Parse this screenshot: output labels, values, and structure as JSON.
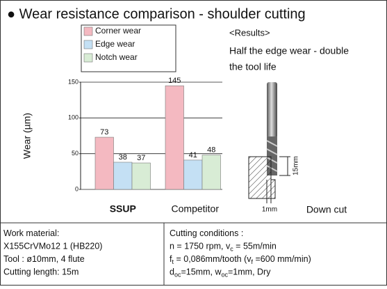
{
  "chart_data": {
    "type": "bar",
    "title": "● Wear resistance comparison - shoulder cutting",
    "y_label": "Wear (µm)",
    "categories": [
      "SSUP",
      "Competitor"
    ],
    "series": [
      {
        "name": "Corner wear",
        "color": "#f4b9c1",
        "values": [
          73,
          145
        ]
      },
      {
        "name": "Edge wear",
        "color": "#c4e0f4",
        "values": [
          38,
          41
        ]
      },
      {
        "name": "Notch wear",
        "color": "#d8ecd5",
        "values": [
          37,
          48
        ]
      }
    ],
    "ylim": [
      0,
      150
    ],
    "yticks": [
      0,
      50,
      100,
      150
    ],
    "grid": true,
    "legend": "top-left"
  },
  "results": {
    "heading": "<Results>",
    "lines": [
      "Half the edge wear - double",
      "the tool life"
    ]
  },
  "diagram": {
    "depth": "15mm",
    "width": "1mm",
    "mode": "Down cut"
  },
  "table": {
    "left": [
      [
        "Work material:"
      ],
      [
        "X155CrVMo12 1 (HB220)"
      ],
      [
        "Tool :  ø10mm, 4 flute"
      ],
      [
        "Cutting length: 15m"
      ]
    ],
    "right": [
      [
        "Cutting conditions :"
      ],
      [
        "n = 1750 rpm,  v",
        "c",
        " = 55m/min"
      ],
      [
        "f",
        "t",
        " = 0,086mm/tooth (v",
        "f",
        " =600 mm/min)"
      ],
      [
        "d",
        "oc",
        "=15mm,  w",
        "oc",
        "=1mm,  Dry"
      ]
    ]
  }
}
